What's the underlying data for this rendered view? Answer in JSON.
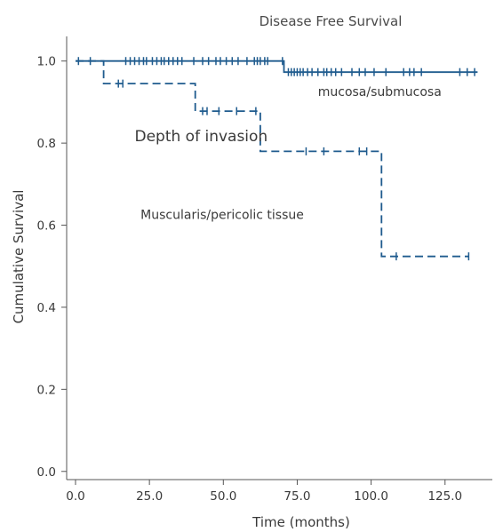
{
  "chart_data": {
    "type": "line",
    "title": "Disease Free Survival",
    "xlabel": "Time (months)",
    "ylabel": "Cumulative Survival",
    "xlim": [
      -3,
      141
    ],
    "ylim": [
      -0.02,
      1.06
    ],
    "xticks": [
      0,
      25,
      50,
      75,
      100,
      125
    ],
    "xtick_labels": [
      "0.0",
      "25.0",
      "50.0",
      "75.0",
      "100.0",
      "125.0"
    ],
    "yticks": [
      0,
      0.2,
      0.4,
      0.6,
      0.8,
      1.0
    ],
    "ytick_labels": [
      "0.0",
      "0.2",
      "0.4",
      "0.6",
      "0.8",
      "1.0"
    ],
    "grid": false,
    "annotations": [
      {
        "text": "Depth of invasion",
        "x": 20,
        "y": 0.805,
        "size": 17
      },
      {
        "text": "mucosa/submucosa",
        "x": 82,
        "y": 0.915,
        "size": 14
      },
      {
        "text": "Muscularis/pericolic tissue",
        "x": 22,
        "y": 0.615,
        "size": 14
      }
    ],
    "series": [
      {
        "name": "mucosa/submucosa",
        "color": "#1f5b8e",
        "dash": "solid",
        "steps": [
          [
            0,
            1.0
          ],
          [
            70.5,
            1.0
          ],
          [
            70.5,
            0.973
          ],
          [
            136,
            0.973
          ]
        ],
        "censored": [
          [
            1,
            1.0
          ],
          [
            17,
            1.0
          ],
          [
            18.5,
            1.0
          ],
          [
            20,
            1.0
          ],
          [
            21.5,
            1.0
          ],
          [
            23,
            1.0
          ],
          [
            24,
            1.0
          ],
          [
            26,
            1.0
          ],
          [
            27.5,
            1.0
          ],
          [
            29,
            1.0
          ],
          [
            30,
            1.0
          ],
          [
            31.5,
            1.0
          ],
          [
            33,
            1.0
          ],
          [
            34.5,
            1.0
          ],
          [
            36,
            1.0
          ],
          [
            40,
            1.0
          ],
          [
            43,
            1.0
          ],
          [
            45,
            1.0
          ],
          [
            47.5,
            1.0
          ],
          [
            49,
            1.0
          ],
          [
            51,
            1.0
          ],
          [
            53,
            1.0
          ],
          [
            55,
            1.0
          ],
          [
            58,
            1.0
          ],
          [
            60.5,
            1.0
          ],
          [
            61.5,
            1.0
          ],
          [
            62.5,
            1.0
          ],
          [
            64,
            1.0
          ],
          [
            65,
            1.0
          ],
          [
            70,
            1.0
          ],
          [
            72,
            0.973
          ],
          [
            73,
            0.973
          ],
          [
            74,
            0.973
          ],
          [
            75,
            0.973
          ],
          [
            76,
            0.973
          ],
          [
            77,
            0.973
          ],
          [
            78.5,
            0.973
          ],
          [
            80,
            0.973
          ],
          [
            82,
            0.973
          ],
          [
            84,
            0.973
          ],
          [
            85,
            0.973
          ],
          [
            86.5,
            0.973
          ],
          [
            88,
            0.973
          ],
          [
            90,
            0.973
          ],
          [
            93.5,
            0.973
          ],
          [
            96,
            0.973
          ],
          [
            98,
            0.973
          ],
          [
            101,
            0.973
          ],
          [
            105,
            0.973
          ],
          [
            111,
            0.973
          ],
          [
            113,
            0.973
          ],
          [
            114.5,
            0.973
          ],
          [
            117,
            0.973
          ],
          [
            130,
            0.973
          ],
          [
            132.5,
            0.973
          ],
          [
            135,
            0.973
          ]
        ]
      },
      {
        "name": "Muscularis/pericolic tissue",
        "color": "#1f5b8e",
        "dash": "dashed",
        "steps": [
          [
            0,
            1.0
          ],
          [
            9.5,
            1.0
          ],
          [
            9.5,
            0.945
          ],
          [
            40.5,
            0.945
          ],
          [
            40.5,
            0.878
          ],
          [
            62.5,
            0.878
          ],
          [
            62.5,
            0.78
          ],
          [
            103.5,
            0.78
          ],
          [
            103.5,
            0.524
          ],
          [
            133,
            0.524
          ]
        ],
        "censored": [
          [
            5,
            1.0
          ],
          [
            14.5,
            0.945
          ],
          [
            16,
            0.945
          ],
          [
            43,
            0.878
          ],
          [
            44.5,
            0.878
          ],
          [
            48.5,
            0.878
          ],
          [
            54.5,
            0.878
          ],
          [
            61,
            0.878
          ],
          [
            78,
            0.78
          ],
          [
            84,
            0.78
          ],
          [
            96,
            0.78
          ],
          [
            98.5,
            0.78
          ],
          [
            108.5,
            0.524
          ],
          [
            133,
            0.524
          ]
        ]
      }
    ]
  }
}
